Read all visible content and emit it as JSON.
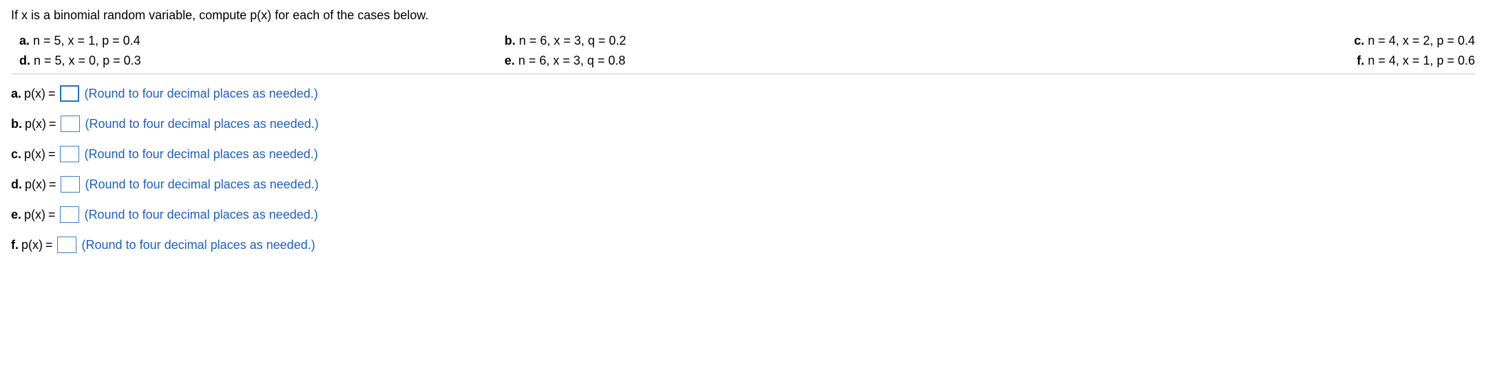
{
  "prompt": "If x is a binomial random variable, compute p(x) for each of the cases below.",
  "cases": {
    "row1": {
      "a": {
        "label": "a.",
        "text": " n = 5, x = 1, p = 0.4"
      },
      "b": {
        "label": "b.",
        "text": " n = 6, x = 3, q = 0.2"
      },
      "c": {
        "label": "c.",
        "text": " n = 4, x = 2, p = 0.4"
      }
    },
    "row2": {
      "d": {
        "label": "d.",
        "text": " n = 5, x = 0, p = 0.3"
      },
      "e": {
        "label": "e.",
        "text": " n = 6, x = 3, q = 0.8"
      },
      "f": {
        "label": "f.",
        "text": " n = 4, x = 1, p = 0.6"
      }
    }
  },
  "answers": {
    "a": {
      "label": "a.",
      "prefix": "p(x)",
      "equals": "=",
      "value": "",
      "active": true
    },
    "b": {
      "label": "b.",
      "prefix": "p(x)",
      "equals": "=",
      "value": "",
      "active": false
    },
    "c": {
      "label": "c.",
      "prefix": "p(x)",
      "equals": "=",
      "value": "",
      "active": false
    },
    "d": {
      "label": "d.",
      "prefix": "p(x)",
      "equals": "=",
      "value": "",
      "active": false
    },
    "e": {
      "label": "e.",
      "prefix": "p(x)",
      "equals": "=",
      "value": "",
      "active": false
    },
    "f": {
      "label": "f.",
      "prefix": "p(x)",
      "equals": "=",
      "value": "",
      "active": false
    }
  },
  "hint": "(Round to four decimal places as needed.)",
  "colors": {
    "text": "#000000",
    "hint": "#1e5fbf",
    "input_border": "#3b7fc4",
    "input_active_border": "#1e73c8",
    "divider": "#cccccc",
    "background": "#ffffff"
  },
  "typography": {
    "body_fontsize": 18,
    "font_family": "Arial"
  }
}
